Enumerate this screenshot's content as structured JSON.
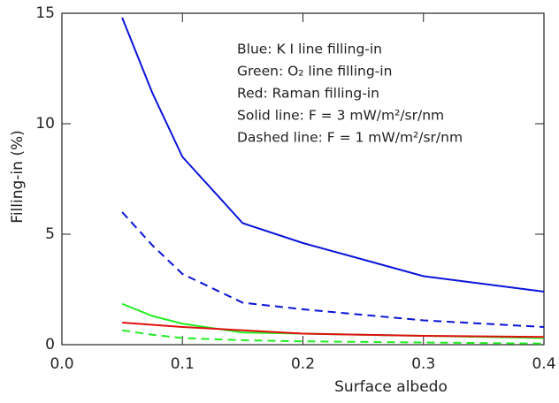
{
  "chart_data": {
    "type": "line",
    "xlabel": "Surface albedo",
    "ylabel": "Filling-in (%)",
    "x": [
      0.05,
      0.075,
      0.1,
      0.15,
      0.2,
      0.3,
      0.4
    ],
    "series": [
      {
        "color": "#0a14d8",
        "dash": false,
        "values": [
          14.8,
          11.4,
          8.5,
          5.5,
          4.6,
          3.1,
          2.4
        ]
      },
      {
        "color": "#0a14d8",
        "dash": true,
        "values": [
          6.0,
          4.5,
          3.2,
          1.9,
          1.6,
          1.1,
          0.8
        ]
      },
      {
        "color": "#22ee22",
        "dash": false,
        "values": [
          1.85,
          1.3,
          0.95,
          0.55,
          0.5,
          0.4,
          0.3
        ]
      },
      {
        "color": "#22ee22",
        "dash": true,
        "values": [
          0.65,
          0.45,
          0.3,
          0.2,
          0.15,
          0.1,
          0.05
        ]
      },
      {
        "color": "#e01010",
        "dash": false,
        "values": [
          1.0,
          0.9,
          0.8,
          0.65,
          0.5,
          0.4,
          0.35
        ]
      }
    ],
    "annotations": [
      "Blue: K I line filling-in",
      "Green: O₂ line filling-in",
      "Red: Raman filling-in",
      "Solid line: F = 3 mW/m²/sr/nm",
      "Dashed line: F = 1 mW/m²/sr/nm"
    ],
    "xlim": [
      0,
      0.4
    ],
    "xticks": [
      {
        "value": 0,
        "label": "0.0"
      },
      0.1,
      0.2,
      0.3,
      0.4
    ],
    "ylim": [
      0,
      15
    ],
    "yticks": [
      0,
      5,
      10,
      15
    ]
  }
}
